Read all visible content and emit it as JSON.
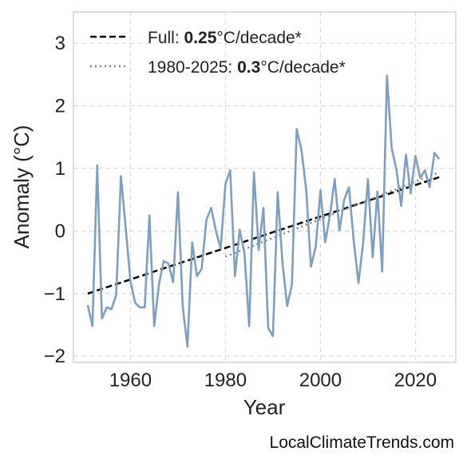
{
  "chart_data": {
    "type": "line",
    "xlabel": "Year",
    "ylabel": "Anomaly (°C)",
    "xlim": [
      1948,
      2028.5
    ],
    "ylim": [
      -2.1,
      3.5
    ],
    "x_ticks": [
      "1960",
      "1980",
      "2000",
      "2020"
    ],
    "y_ticks": [
      "−2",
      "−1",
      "0",
      "1",
      "2",
      "3"
    ],
    "grid": true,
    "legend_position": "top-left",
    "legend": [
      {
        "prefix": "Full: ",
        "rate": "0.25",
        "suffix": "°C/decade*",
        "style": "dashed",
        "color": "#000000"
      },
      {
        "prefix": "1980-2025: ",
        "rate": "0.3",
        "suffix": "°C/decade*",
        "style": "dotted",
        "color": "#808080"
      }
    ],
    "series": [
      {
        "color": "#7f9fc0",
        "x": [
          1951,
          1952,
          1953,
          1954,
          1955,
          1956,
          1957,
          1958,
          1959,
          1960,
          1961,
          1962,
          1963,
          1964,
          1965,
          1966,
          1967,
          1968,
          1969,
          1970,
          1971,
          1972,
          1973,
          1974,
          1975,
          1976,
          1977,
          1978,
          1979,
          1980,
          1981,
          1982,
          1983,
          1984,
          1985,
          1986,
          1987,
          1988,
          1989,
          1990,
          1991,
          1992,
          1993,
          1994,
          1995,
          1996,
          1997,
          1998,
          1999,
          2000,
          2001,
          2002,
          2003,
          2004,
          2005,
          2006,
          2007,
          2008,
          2009,
          2010,
          2011,
          2012,
          2013,
          2014,
          2015,
          2016,
          2017,
          2018,
          2019,
          2020,
          2021,
          2022,
          2023,
          2024,
          2025
        ],
        "y": [
          -1.18,
          -1.52,
          1.05,
          -1.4,
          -1.22,
          -1.25,
          -1.02,
          0.88,
          0.05,
          -0.8,
          -1.15,
          -1.22,
          -1.22,
          0.25,
          -1.52,
          -0.85,
          -0.48,
          -0.52,
          -0.82,
          0.62,
          -1.2,
          -1.85,
          -0.18,
          -0.72,
          -0.6,
          0.18,
          0.37,
          0.0,
          -0.28,
          0.75,
          0.97,
          -0.72,
          0.02,
          -0.35,
          -1.52,
          0.94,
          -0.3,
          0.37,
          -1.55,
          -1.68,
          0.62,
          -0.5,
          -1.2,
          -0.85,
          1.63,
          1.3,
          0.66,
          -0.57,
          -0.25,
          0.65,
          -0.18,
          0.25,
          0.83,
          0.01,
          0.5,
          0.7,
          -0.15,
          -0.83,
          -0.18,
          0.83,
          -0.42,
          0.63,
          -0.65,
          2.48,
          1.33,
          0.98,
          0.4,
          1.22,
          0.6,
          1.2,
          0.85,
          0.97,
          0.7,
          1.25,
          1.15
        ]
      }
    ],
    "trends": [
      {
        "x": [
          1951,
          2025
        ],
        "y": [
          -1.0,
          0.86
        ],
        "style": "dashed",
        "color": "#000000"
      },
      {
        "x": [
          1980,
          2025
        ],
        "y": [
          -0.41,
          0.94
        ],
        "style": "dotted",
        "color": "#808080"
      }
    ]
  },
  "credit": "LocalClimateTrends.com"
}
